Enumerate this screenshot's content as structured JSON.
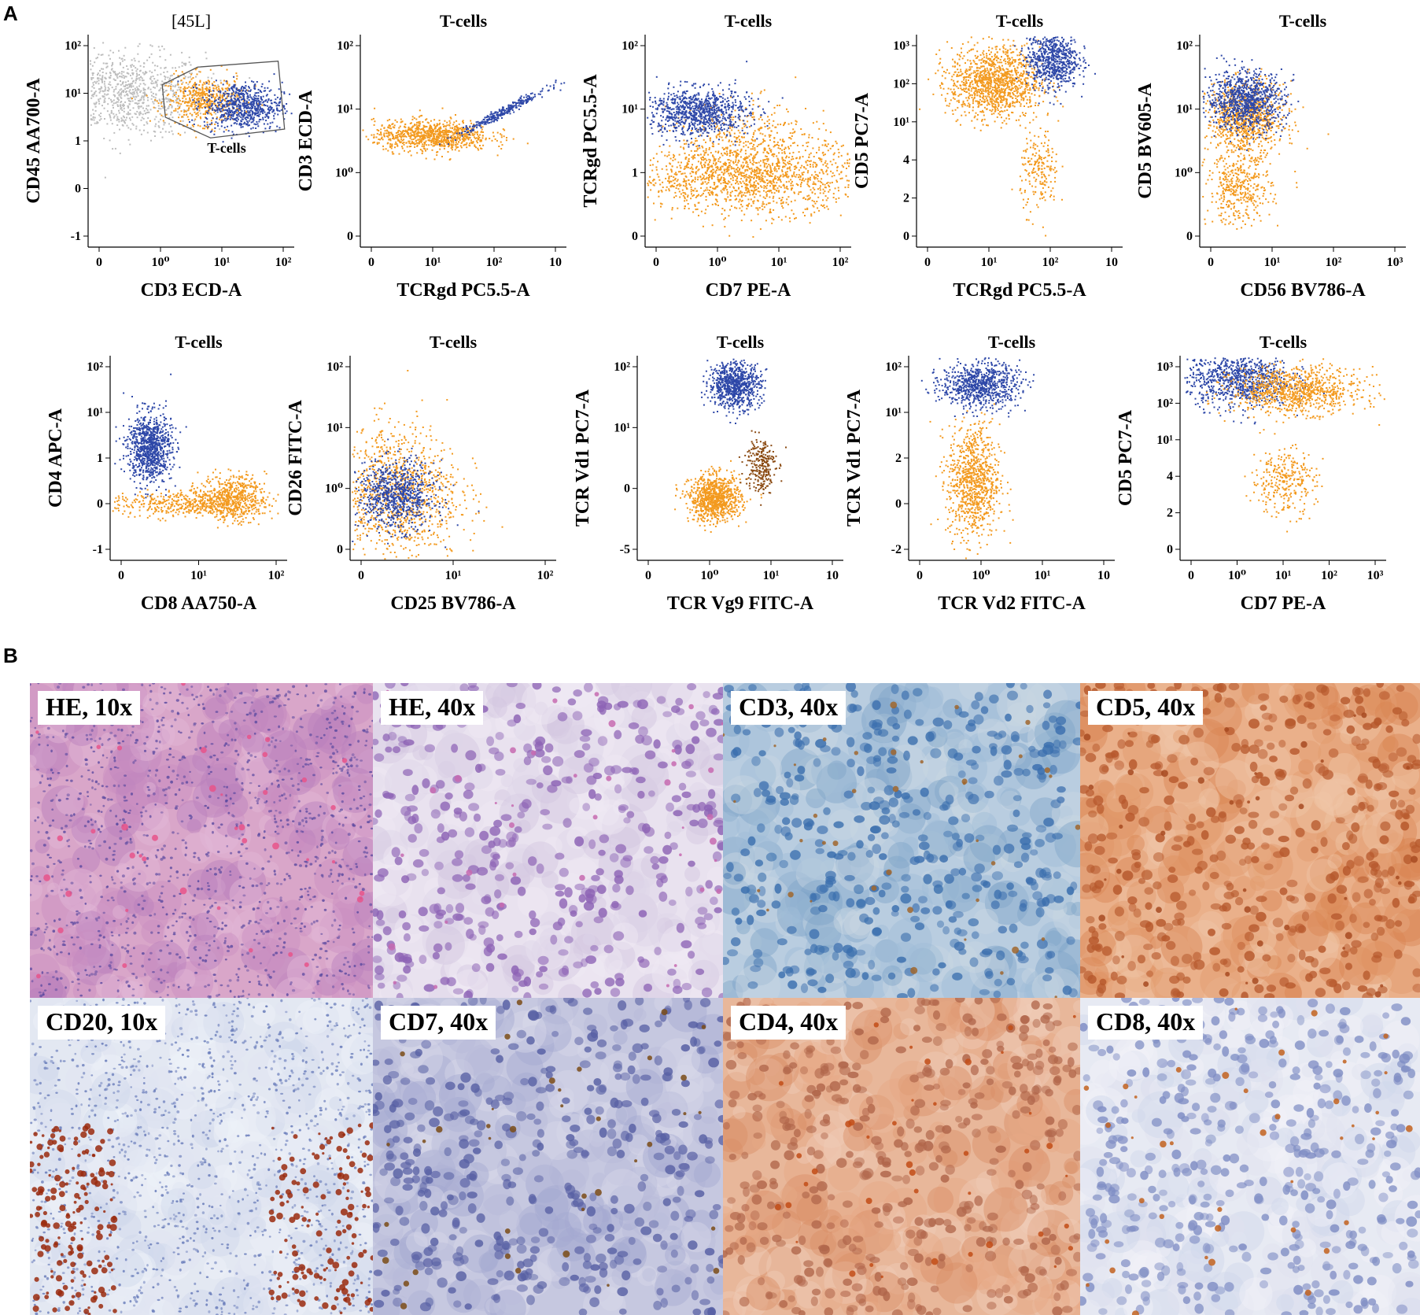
{
  "figure": {
    "panel_a_label": "A",
    "panel_b_label": "B"
  },
  "colors": {
    "orange": "#f39a1f",
    "blue": "#2e48a8",
    "gray": "#bdbdbd",
    "brown": "#8a4a12"
  },
  "chart_data": [
    {
      "type": "scatter",
      "title": "[45L]",
      "xlabel": "CD3 ECD-A",
      "ylabel": "CD45 AA700-A",
      "xticks": [
        "0",
        "10⁰",
        "10¹",
        "10²"
      ],
      "yticks": [
        "10²",
        "10¹",
        "1",
        "0",
        "-1"
      ],
      "gate_label": "T-cells",
      "populations": [
        {
          "name": "gray",
          "x": 0.0,
          "y": 1.8,
          "sx": 0.6,
          "sy": 0.35,
          "n": 900
        },
        {
          "name": "orange",
          "x": 1.2,
          "y": 1.7,
          "sx": 0.3,
          "sy": 0.2,
          "n": 500
        },
        {
          "name": "blue",
          "x": 1.8,
          "y": 1.6,
          "sx": 0.3,
          "sy": 0.2,
          "n": 700
        }
      ]
    },
    {
      "type": "scatter",
      "title": "T-cells",
      "xlabel": "TCRgd PC5.5-A",
      "ylabel": "CD3 ECD-A",
      "xticks": [
        "0",
        "10¹",
        "10²",
        "10"
      ],
      "yticks": [
        "10²",
        "10¹",
        "10⁰",
        "0"
      ],
      "populations": [
        {
          "name": "orange",
          "x": 0.5,
          "y": 1.1,
          "sx": 0.45,
          "sy": 0.13,
          "n": 900
        },
        {
          "name": "blue",
          "x": 1.6,
          "y": 1.5,
          "sx": 0.35,
          "sy": 0.1,
          "n": 300,
          "diag": true
        }
      ]
    },
    {
      "type": "scatter",
      "title": "T-cells",
      "xlabel": "CD7 PE-A",
      "ylabel": "TCRgd PC5.5-A",
      "xticks": [
        "0",
        "10⁰",
        "10¹",
        "10²"
      ],
      "yticks": [
        "10²",
        "10¹",
        "1",
        "0"
      ],
      "populations": [
        {
          "name": "orange",
          "x": 1.0,
          "y": 0.4,
          "sx": 0.9,
          "sy": 0.3,
          "n": 1500
        },
        {
          "name": "orange",
          "x": 1.0,
          "y": 1.1,
          "sx": 0.6,
          "sy": 0.3,
          "n": 300
        },
        {
          "name": "blue",
          "x": 0.2,
          "y": 1.5,
          "sx": 0.4,
          "sy": 0.2,
          "n": 900
        }
      ]
    },
    {
      "type": "scatter",
      "title": "T-cells",
      "xlabel": "TCRgd PC5.5-A",
      "ylabel": "CD5 PC7-A",
      "xticks": [
        "0",
        "10¹",
        "10²",
        "10"
      ],
      "yticks": [
        "10³",
        "10²",
        "10¹",
        "4",
        "2",
        "0"
      ],
      "populations": [
        {
          "name": "orange",
          "x": 0.6,
          "y": 2.0,
          "sx": 0.35,
          "sy": 0.3,
          "n": 1200
        },
        {
          "name": "blue",
          "x": 1.5,
          "y": 2.4,
          "sx": 0.2,
          "sy": 0.25,
          "n": 700
        },
        {
          "name": "orange",
          "x": 1.3,
          "y": 0.5,
          "sx": 0.15,
          "sy": 0.35,
          "n": 200
        }
      ]
    },
    {
      "type": "scatter",
      "title": "T-cells",
      "xlabel": "CD56 BV786-A",
      "ylabel": "CD5 BV605-A",
      "xticks": [
        "0",
        "10¹",
        "10²",
        "10³"
      ],
      "yticks": [
        "10²",
        "10¹",
        "10⁰",
        "0"
      ],
      "populations": [
        {
          "name": "orange",
          "x": 0.1,
          "y": 1.4,
          "sx": 0.3,
          "sy": 0.3,
          "n": 900
        },
        {
          "name": "blue",
          "x": 0.1,
          "y": 1.7,
          "sx": 0.3,
          "sy": 0.25,
          "n": 900
        },
        {
          "name": "orange",
          "x": 0.0,
          "y": 0.2,
          "sx": 0.25,
          "sy": 0.3,
          "n": 400
        }
      ]
    },
    {
      "type": "scatter",
      "title": "T-cells",
      "xlabel": "CD8 AA750-A",
      "ylabel": "CD4 APC-A",
      "xticks": [
        "0",
        "10¹",
        "10²"
      ],
      "yticks": [
        "10²",
        "10¹",
        "1",
        "0",
        "-1"
      ],
      "populations": [
        {
          "name": "blue",
          "x": 0.1,
          "y": 1.2,
          "sx": 0.2,
          "sy": 0.3,
          "n": 900
        },
        {
          "name": "orange",
          "x": 1.6,
          "y": 0.3,
          "sx": 0.3,
          "sy": 0.2,
          "n": 600
        },
        {
          "name": "orange",
          "x": 0.6,
          "y": 0.2,
          "sx": 0.6,
          "sy": 0.12,
          "n": 400
        }
      ]
    },
    {
      "type": "scatter",
      "title": "T-cells",
      "xlabel": "CD25 BV786-A",
      "ylabel": "CD26 FITC-A",
      "xticks": [
        "0",
        "10¹",
        "10²"
      ],
      "yticks": [
        "10²",
        "10¹",
        "10⁰",
        "0"
      ],
      "populations": [
        {
          "name": "orange",
          "x": 0.1,
          "y": 0.4,
          "sx": 0.5,
          "sy": 0.6,
          "n": 1100
        },
        {
          "name": "blue",
          "x": 0.1,
          "y": 0.35,
          "sx": 0.3,
          "sy": 0.3,
          "n": 800
        }
      ]
    },
    {
      "type": "scatter",
      "title": "T-cells",
      "xlabel": "TCR Vg9 FITC-A",
      "ylabel": "TCR Vd1 PC7-A",
      "xticks": [
        "0",
        "10⁰",
        "10¹",
        "10"
      ],
      "yticks": [
        "10²",
        "10¹",
        "0",
        "-5"
      ],
      "populations": [
        {
          "name": "blue",
          "x": 0.9,
          "y": 2.3,
          "sx": 0.2,
          "sy": 0.2,
          "n": 800
        },
        {
          "name": "orange",
          "x": 0.6,
          "y": 0.3,
          "sx": 0.2,
          "sy": 0.2,
          "n": 900
        },
        {
          "name": "brown",
          "x": 1.3,
          "y": 0.9,
          "sx": 0.12,
          "sy": 0.25,
          "n": 250
        }
      ]
    },
    {
      "type": "scatter",
      "title": "T-cells",
      "xlabel": "TCR Vd2 FITC-A",
      "ylabel": "TCR Vd1 PC7-A",
      "xticks": [
        "0",
        "10⁰",
        "10¹",
        "10"
      ],
      "yticks": [
        "10²",
        "10¹",
        "2",
        "0",
        "-2"
      ],
      "populations": [
        {
          "name": "blue",
          "x": 0.5,
          "y": 2.3,
          "sx": 0.3,
          "sy": 0.2,
          "n": 800
        },
        {
          "name": "orange",
          "x": 0.4,
          "y": 0.6,
          "sx": 0.2,
          "sy": 0.5,
          "n": 900
        }
      ]
    },
    {
      "type": "scatter",
      "title": "T-cells",
      "xlabel": "CD7 PE-A",
      "ylabel": "CD5 PC7-A",
      "xticks": [
        "0",
        "10⁰",
        "10¹",
        "10²",
        "10³"
      ],
      "yticks": [
        "10³",
        "10²",
        "10¹",
        "4",
        "2",
        "0"
      ],
      "populations": [
        {
          "name": "blue",
          "x": 0.3,
          "y": 2.4,
          "sx": 0.4,
          "sy": 0.25,
          "n": 900
        },
        {
          "name": "orange",
          "x": 1.2,
          "y": 2.2,
          "sx": 0.5,
          "sy": 0.2,
          "n": 900
        },
        {
          "name": "orange",
          "x": 1.0,
          "y": 0.6,
          "sx": 0.25,
          "sy": 0.3,
          "n": 300
        }
      ]
    }
  ],
  "histology": [
    {
      "label": "HE, 10x",
      "stain": "he_low"
    },
    {
      "label": "HE, 40x",
      "stain": "he_high"
    },
    {
      "label": "CD3, 40x",
      "stain": "cd3"
    },
    {
      "label": "CD5, 40x",
      "stain": "cd5"
    },
    {
      "label": "CD20, 10x",
      "stain": "cd20"
    },
    {
      "label": "CD7, 40x",
      "stain": "cd7"
    },
    {
      "label": "CD4, 40x",
      "stain": "cd4"
    },
    {
      "label": "CD8, 40x",
      "stain": "cd8"
    }
  ]
}
